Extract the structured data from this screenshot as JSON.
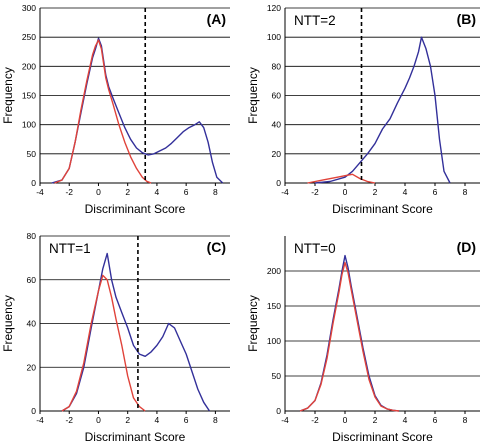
{
  "colors": {
    "series_blue": "#33309a",
    "series_red": "#e0433a",
    "axis": "#000000"
  },
  "chart_data": [
    {
      "type": "line",
      "panel_tag": "(A)",
      "ntt_label": "",
      "xlabel": "Discriminant Score",
      "ylabel": "Frequency",
      "xlim": [
        -4,
        9
      ],
      "ylim": [
        0,
        300
      ],
      "x_ticks": [
        -4,
        -2,
        0,
        2,
        4,
        6,
        8
      ],
      "y_ticks": [
        0,
        50,
        100,
        150,
        200,
        250,
        300
      ],
      "grid": "horizontal",
      "cutoff_x": 3.2,
      "series": [
        {
          "color": "#33309a",
          "x": [
            -3.2,
            -2.5,
            -2.0,
            -1.6,
            -1.2,
            -0.8,
            -0.4,
            -0.2,
            0.0,
            0.2,
            0.35,
            0.5,
            0.7,
            1.0,
            1.4,
            1.8,
            2.2,
            2.6,
            3.0,
            3.4,
            3.8,
            4.2,
            4.6,
            5.0,
            5.4,
            5.8,
            6.2,
            6.6,
            6.9,
            7.2,
            7.5,
            7.8,
            8.1,
            8.5
          ],
          "y": [
            0,
            5,
            25,
            70,
            120,
            170,
            215,
            230,
            248,
            235,
            210,
            185,
            165,
            145,
            120,
            95,
            75,
            60,
            52,
            48,
            50,
            55,
            60,
            68,
            78,
            88,
            95,
            100,
            105,
            95,
            70,
            35,
            10,
            0
          ]
        },
        {
          "color": "#e0433a",
          "x": [
            -3.0,
            -2.5,
            -2.0,
            -1.6,
            -1.2,
            -0.8,
            -0.4,
            -0.2,
            0.0,
            0.2,
            0.35,
            0.5,
            0.7,
            1.0,
            1.4,
            1.8,
            2.2,
            2.6,
            3.0,
            3.3,
            3.6
          ],
          "y": [
            0,
            5,
            25,
            70,
            125,
            175,
            220,
            235,
            245,
            230,
            205,
            180,
            160,
            135,
            100,
            70,
            45,
            25,
            10,
            3,
            0
          ]
        }
      ]
    },
    {
      "type": "line",
      "panel_tag": "(B)",
      "ntt_label": "NTT=2",
      "xlabel": "Discriminant Score",
      "ylabel": "Frequency",
      "xlim": [
        -4,
        9
      ],
      "ylim": [
        0,
        120
      ],
      "x_ticks": [
        -4,
        -2,
        0,
        2,
        4,
        6,
        8
      ],
      "y_ticks": [
        0,
        20,
        40,
        60,
        80,
        100,
        120
      ],
      "grid": "horizontal",
      "cutoff_x": 1.1,
      "series": [
        {
          "color": "#33309a",
          "x": [
            -2.0,
            -1.0,
            0.0,
            0.5,
            1.0,
            1.5,
            2.0,
            2.5,
            3.0,
            3.5,
            4.0,
            4.3,
            4.6,
            4.9,
            5.1,
            5.4,
            5.7,
            6.0,
            6.3,
            6.6,
            7.0
          ],
          "y": [
            0,
            1,
            4,
            8,
            14,
            20,
            27,
            37,
            44,
            55,
            65,
            72,
            80,
            90,
            100,
            92,
            80,
            60,
            30,
            8,
            0
          ]
        },
        {
          "color": "#e0433a",
          "x": [
            -2.5,
            -1.5,
            -0.5,
            0.0,
            0.5,
            1.0,
            1.5,
            2.0
          ],
          "y": [
            0,
            2,
            4,
            5,
            6,
            3,
            1,
            0
          ]
        }
      ]
    },
    {
      "type": "line",
      "panel_tag": "(C)",
      "ntt_label": "NTT=1",
      "xlabel": "Discriminant Score",
      "ylabel": "Frequency",
      "xlim": [
        -4,
        9
      ],
      "ylim": [
        0,
        80
      ],
      "x_ticks": [
        -4,
        -2,
        0,
        2,
        4,
        6,
        8
      ],
      "y_ticks": [
        0,
        20,
        40,
        60,
        80
      ],
      "grid": "horizontal",
      "cutoff_x": 2.7,
      "series": [
        {
          "color": "#33309a",
          "x": [
            -2.5,
            -2.0,
            -1.5,
            -1.0,
            -0.5,
            0.0,
            0.3,
            0.6,
            0.9,
            1.2,
            1.6,
            2.0,
            2.4,
            2.8,
            3.2,
            3.6,
            4.0,
            4.4,
            4.8,
            5.2,
            5.6,
            6.0,
            6.4,
            6.8,
            7.2,
            7.6
          ],
          "y": [
            0,
            2,
            8,
            20,
            38,
            55,
            65,
            72,
            60,
            52,
            45,
            38,
            30,
            26,
            25,
            27,
            30,
            34,
            40,
            38,
            32,
            26,
            18,
            10,
            4,
            0
          ]
        },
        {
          "color": "#e0433a",
          "x": [
            -2.5,
            -2.0,
            -1.5,
            -1.0,
            -0.5,
            0.0,
            0.3,
            0.6,
            0.9,
            1.2,
            1.6,
            2.0,
            2.4,
            2.8,
            3.2
          ],
          "y": [
            0,
            2,
            9,
            22,
            40,
            55,
            62,
            60,
            52,
            42,
            30,
            16,
            6,
            2,
            0
          ]
        }
      ]
    },
    {
      "type": "line",
      "panel_tag": "(D)",
      "ntt_label": "NTT=0",
      "xlabel": "Discriminant Score",
      "ylabel": "Frequency",
      "xlim": [
        -4,
        9
      ],
      "ylim": [
        0,
        250
      ],
      "x_ticks": [
        -4,
        -2,
        0,
        2,
        4,
        6,
        8
      ],
      "y_ticks": [
        0,
        50,
        100,
        150,
        200
      ],
      "grid": "horizontal",
      "cutoff_x": null,
      "series": [
        {
          "color": "#33309a",
          "x": [
            -3.0,
            -2.5,
            -2.0,
            -1.6,
            -1.2,
            -0.8,
            -0.4,
            -0.2,
            0.0,
            0.2,
            0.4,
            0.8,
            1.2,
            1.6,
            2.0,
            2.4,
            2.8,
            3.2,
            3.6
          ],
          "y": [
            0,
            4,
            15,
            40,
            80,
            130,
            175,
            200,
            222,
            205,
            180,
            135,
            90,
            50,
            22,
            8,
            3,
            1,
            0
          ]
        },
        {
          "color": "#e0433a",
          "x": [
            -3.0,
            -2.5,
            -2.0,
            -1.6,
            -1.2,
            -0.8,
            -0.4,
            -0.2,
            0.0,
            0.2,
            0.4,
            0.8,
            1.2,
            1.6,
            2.0,
            2.4,
            2.8,
            3.2,
            3.6
          ],
          "y": [
            0,
            4,
            15,
            38,
            75,
            125,
            170,
            195,
            212,
            198,
            175,
            130,
            85,
            45,
            20,
            7,
            3,
            1,
            0
          ]
        }
      ]
    }
  ]
}
